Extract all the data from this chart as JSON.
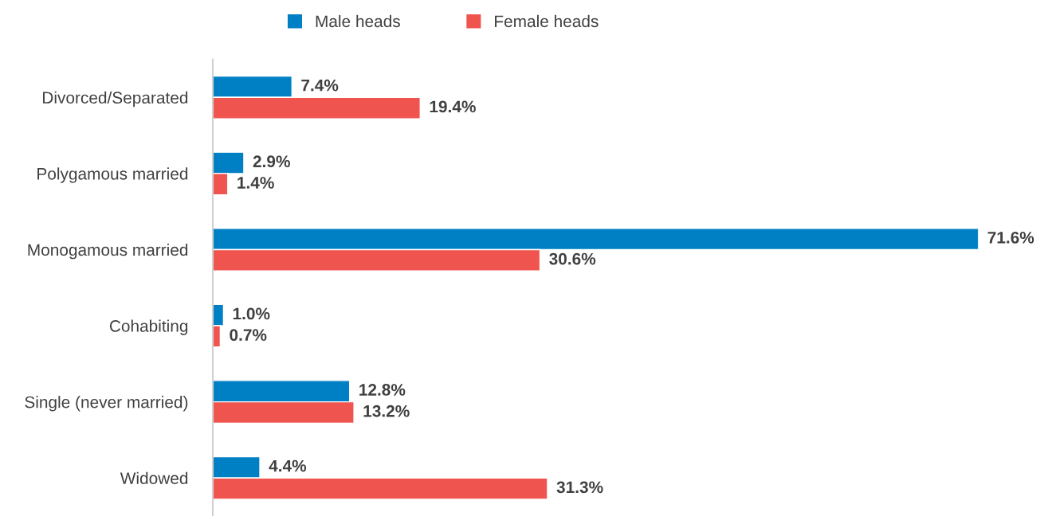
{
  "chart_data": {
    "type": "bar",
    "orientation": "horizontal",
    "categories": [
      "Divorced/Separated",
      "Polygamous married",
      "Monogamous married",
      "Cohabiting",
      "Single (never married)",
      "Widowed"
    ],
    "series": [
      {
        "name": "Male heads",
        "color": "#0080c4",
        "values": [
          7.4,
          2.9,
          71.6,
          1.0,
          12.8,
          4.4
        ],
        "value_labels": [
          "7.4%",
          "2.9%",
          "71.6%",
          "1.0%",
          "12.8%",
          "4.4%"
        ]
      },
      {
        "name": "Female heads",
        "color": "#f0544f",
        "values": [
          19.4,
          1.4,
          30.6,
          0.7,
          13.2,
          31.3
        ],
        "value_labels": [
          "19.4%",
          "1.4%",
          "30.6%",
          "0.7%",
          "13.2%",
          "31.3%"
        ]
      }
    ],
    "legend": "top",
    "grid": false,
    "tick_labels": "y"
  }
}
